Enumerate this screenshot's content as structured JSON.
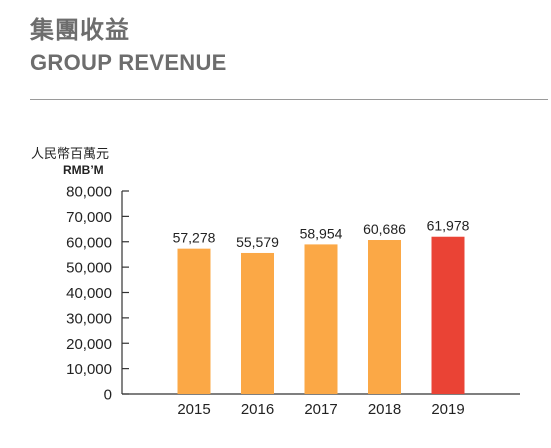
{
  "header": {
    "title_zh": "集團收益",
    "title_en": "GROUP REVENUE"
  },
  "chart_data": {
    "type": "bar",
    "unit_zh": "人民幣百萬元",
    "unit_en": "RMB’M",
    "categories": [
      "2015",
      "2016",
      "2017",
      "2018",
      "2019"
    ],
    "values": [
      57278,
      55579,
      58954,
      60686,
      61978
    ],
    "value_labels": [
      "57,278",
      "55,579",
      "58,954",
      "60,686",
      "61,978"
    ],
    "ylim": [
      0,
      80000
    ],
    "yticks": [
      0,
      10000,
      20000,
      30000,
      40000,
      50000,
      60000,
      70000,
      80000
    ],
    "ytick_labels": [
      "0",
      "10,000",
      "20,000",
      "30,000",
      "40,000",
      "50,000",
      "60,000",
      "70,000",
      "80,000"
    ],
    "colors": [
      "#FBA846",
      "#FBA846",
      "#FBA846",
      "#FBA846",
      "#EA4335"
    ],
    "grid": false,
    "legend": "none"
  }
}
